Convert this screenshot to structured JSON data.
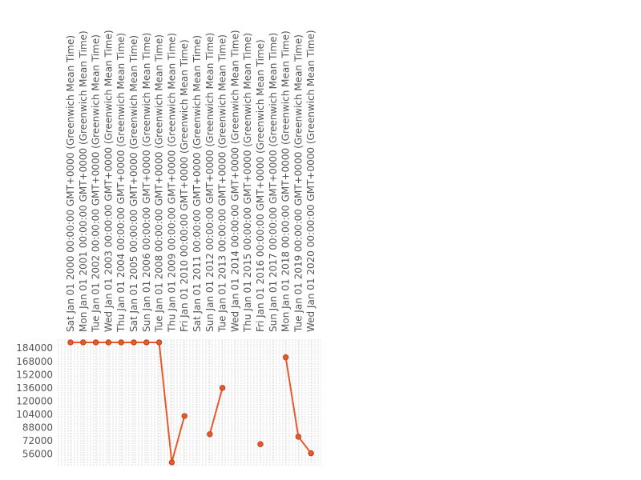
{
  "chart_data": {
    "type": "line",
    "title": "",
    "xlabel": "",
    "ylabel": "",
    "x": [
      "Sat Jan 01 2000 00:00:00 GMT+0000 (Greenwich Mean Time)",
      "Mon Jan 01 2001 00:00:00 GMT+0000 (Greenwich Mean Time)",
      "Tue Jan 01 2002 00:00:00 GMT+0000 (Greenwich Mean Time)",
      "Wed Jan 01 2003 00:00:00 GMT+0000 (Greenwich Mean Time)",
      "Thu Jan 01 2004 00:00:00 GMT+0000 (Greenwich Mean Time)",
      "Sat Jan 01 2005 00:00:00 GMT+0000 (Greenwich Mean Time)",
      "Sun Jan 01 2006 00:00:00 GMT+0000 (Greenwich Mean Time)",
      "Tue Jan 01 2008 00:00:00 GMT+0000 (Greenwich Mean Time)",
      "Thu Jan 01 2009 00:00:00 GMT+0000 (Greenwich Mean Time)",
      "Fri Jan 01 2010 00:00:00 GMT+0000 (Greenwich Mean Time)",
      "Sat Jan 01 2011 00:00:00 GMT+0000 (Greenwich Mean Time)",
      "Sun Jan 01 2012 00:00:00 GMT+0000 (Greenwich Mean Time)",
      "Tue Jan 01 2013 00:00:00 GMT+0000 (Greenwich Mean Time)",
      "Wed Jan 01 2014 00:00:00 GMT+0000 (Greenwich Mean Time)",
      "Thu Jan 01 2015 00:00:00 GMT+0000 (Greenwich Mean Time)",
      "Fri Jan 01 2016 00:00:00 GMT+0000 (Greenwich Mean Time)",
      "Sun Jan 01 2017 00:00:00 GMT+0000 (Greenwich Mean Time)",
      "Mon Jan 01 2018 00:00:00 GMT+0000 (Greenwich Mean Time)",
      "Tue Jan 01 2019 00:00:00 GMT+0000 (Greenwich Mean Time)",
      "Wed Jan 01 2020 00:00:00 GMT+0000 (Greenwich Mean Time)"
    ],
    "series": [
      {
        "values": [
          191000,
          191000,
          191000,
          191000,
          191000,
          191000,
          191000,
          191000,
          46000,
          102000,
          null,
          80000,
          136000,
          null,
          null,
          68000,
          null,
          173000,
          77000,
          57000
        ]
      }
    ],
    "yticks": [
      "56000",
      "72000",
      "88000",
      "104000",
      "120000",
      "136000",
      "152000",
      "168000",
      "184000"
    ],
    "ylim": [
      45000,
      191000
    ],
    "grid": true,
    "legend": "none",
    "colors": {
      "line": "#e8582a",
      "marker_fill": "#e8582a",
      "marker_stroke": "#b8431d",
      "grid": "#dddddd"
    }
  }
}
